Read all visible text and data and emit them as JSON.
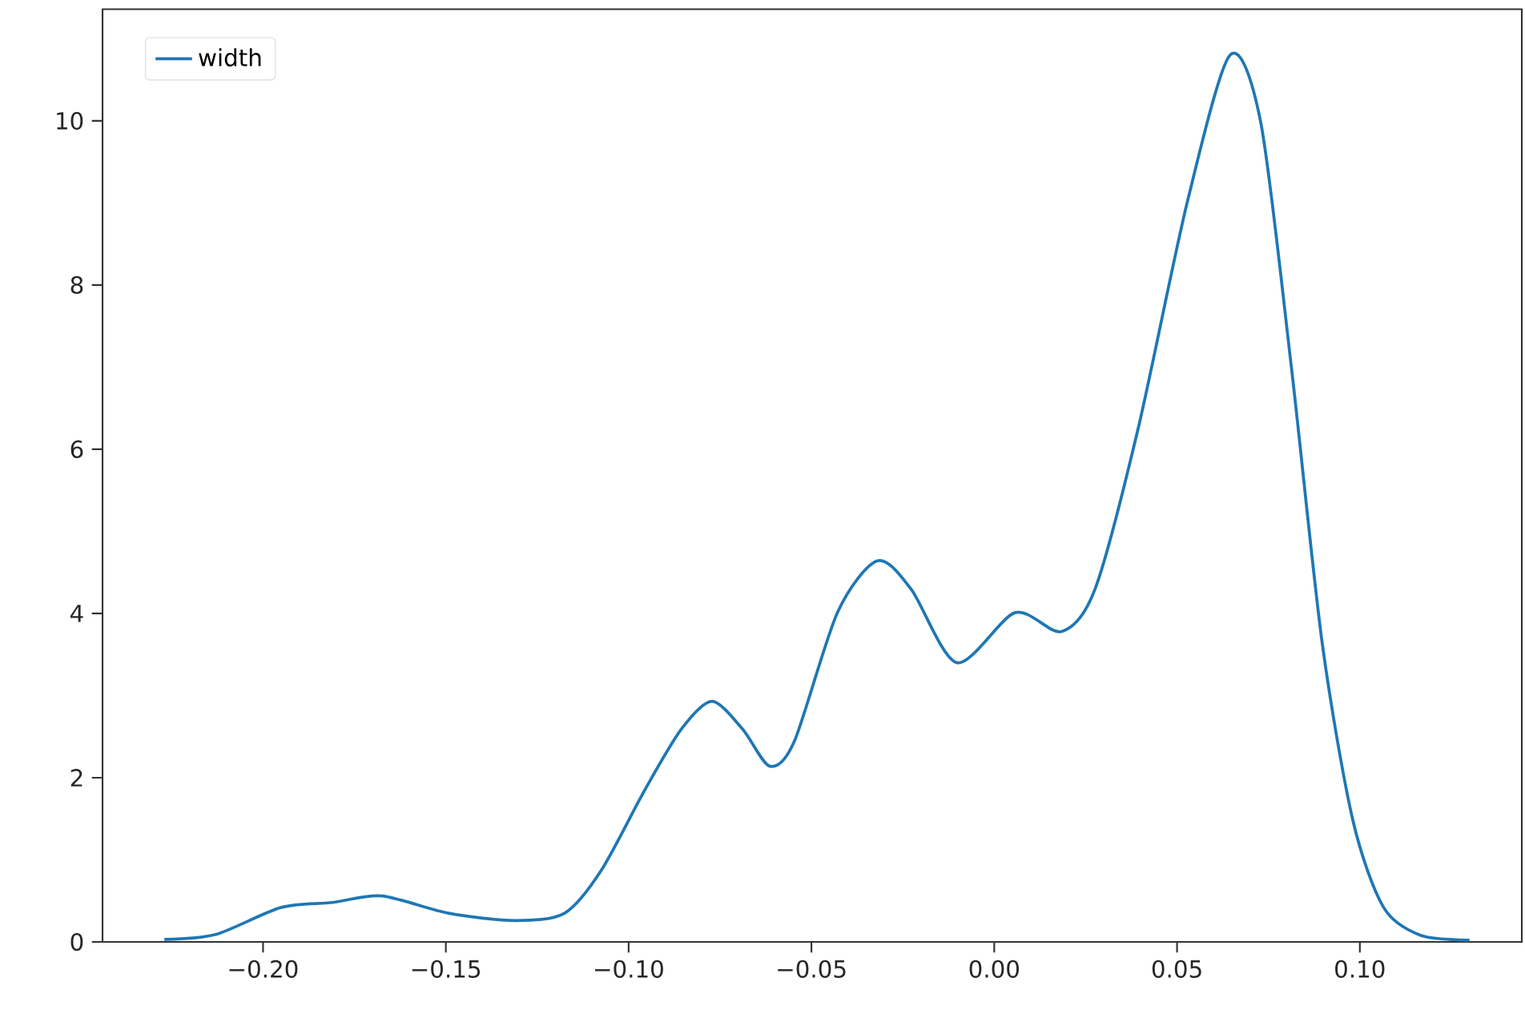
{
  "chart_data": {
    "type": "line",
    "x": [
      -0.227,
      -0.213,
      -0.195,
      -0.181,
      -0.1675,
      -0.1493,
      -0.131,
      -0.1175,
      -0.1075,
      -0.0957,
      -0.0856,
      -0.0772,
      -0.0688,
      -0.0614,
      -0.0547,
      -0.0429,
      -0.032,
      -0.0228,
      -0.0102,
      0.0057,
      0.0184,
      0.0276,
      0.0393,
      0.0528,
      0.0645,
      0.0729,
      0.0813,
      0.0897,
      0.0981,
      0.1065,
      0.1166,
      0.13
    ],
    "series": [
      {
        "name": "width",
        "color": "#1f77b4",
        "values": [
          0.03,
          0.09,
          0.42,
          0.48,
          0.56,
          0.35,
          0.26,
          0.35,
          0.87,
          1.84,
          2.59,
          2.93,
          2.59,
          2.14,
          2.44,
          4.01,
          4.64,
          4.3,
          3.4,
          4.01,
          3.78,
          4.3,
          6.24,
          9.01,
          10.8,
          9.98,
          6.99,
          3.64,
          1.48,
          0.42,
          0.08,
          0.02
        ]
      }
    ],
    "xlim": [
      -0.2439,
      0.1443
    ],
    "ylim": [
      0,
      11.36
    ],
    "xticks": [
      {
        "value": -0.2,
        "label": "−0.20"
      },
      {
        "value": -0.15,
        "label": "−0.15"
      },
      {
        "value": -0.1,
        "label": "−0.10"
      },
      {
        "value": -0.05,
        "label": "−0.05"
      },
      {
        "value": 0,
        "label": "0.00"
      },
      {
        "value": 0.05,
        "label": "0.05"
      },
      {
        "value": 0.1,
        "label": "0.10"
      }
    ],
    "yticks": [
      0,
      2,
      4,
      6,
      8,
      10
    ],
    "legend": "top left",
    "grid": false,
    "marker": "none",
    "line_style": "solid"
  }
}
